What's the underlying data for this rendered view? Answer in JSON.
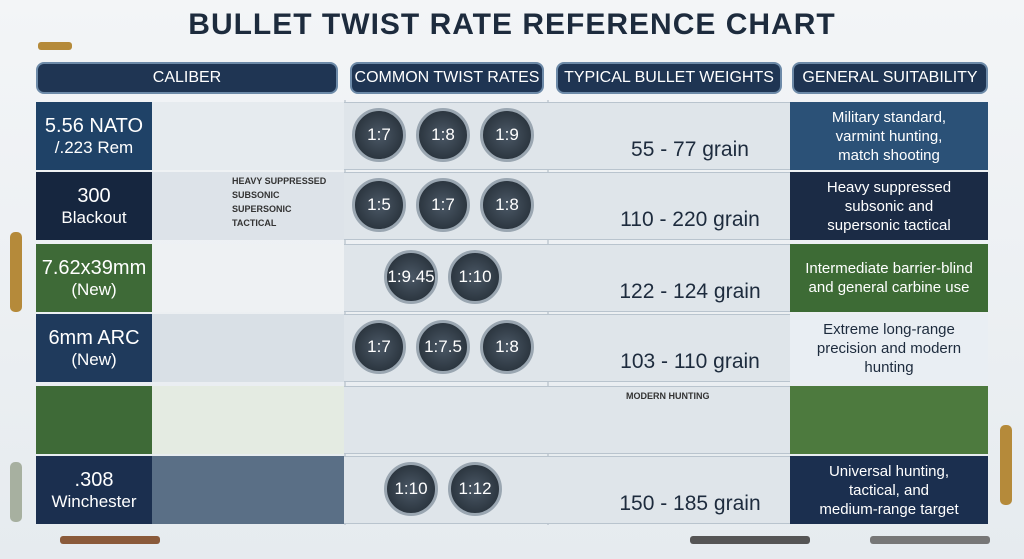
{
  "title": "BULLET TWIST RATE REFERENCE CHART",
  "headers": [
    "CALIBER",
    "COMMON TWIST RATES",
    "TYPICAL BULLET WEIGHTS",
    "GENERAL SUITABILITY"
  ],
  "rows": [
    {
      "caliber": [
        "5.56 NATO",
        "/.223 Rem"
      ],
      "twist": [
        "1:7",
        "1:8",
        "1:9"
      ],
      "weight": "55 - 77 grain",
      "suitability": [
        "Military standard,",
        "varmint hunting,",
        "match shooting"
      ]
    },
    {
      "caliber": [
        "300",
        "Blackout"
      ],
      "twist": [
        "1:5",
        "1:7",
        "1:8"
      ],
      "weight": "110 - 220 grain",
      "suitability": [
        "Heavy suppressed",
        "subsonic and",
        "supersonic tactical"
      ],
      "labels": [
        "HEAVY SUPPRESSED",
        "SUBSONIC",
        "SUPERSONIC",
        "TACTICAL"
      ]
    },
    {
      "caliber": [
        "7.62x39mm",
        "(New)"
      ],
      "twist": [
        "1:9.45",
        "1:10"
      ],
      "weight": "122 - 124 grain",
      "suitability": [
        "Intermediate barrier-blind",
        "and general carbine use"
      ]
    },
    {
      "caliber": [
        "6mm ARC",
        "(New)"
      ],
      "twist": [
        "1:7",
        "1:7.5",
        "1:8"
      ],
      "weight": "103 - 110 grain",
      "suitability": [
        "Extreme long-range",
        "precision and modern",
        "hunting"
      ]
    },
    {
      "labels": [
        "MODERN HUNTING"
      ]
    },
    {
      "caliber": [
        ".308",
        "Winchester"
      ],
      "twist": [
        "1:10",
        "1:12"
      ],
      "weight": "150 - 185 grain",
      "suitability": [
        "Universal hunting,",
        "tactical, and",
        "medium-range target"
      ]
    }
  ]
}
